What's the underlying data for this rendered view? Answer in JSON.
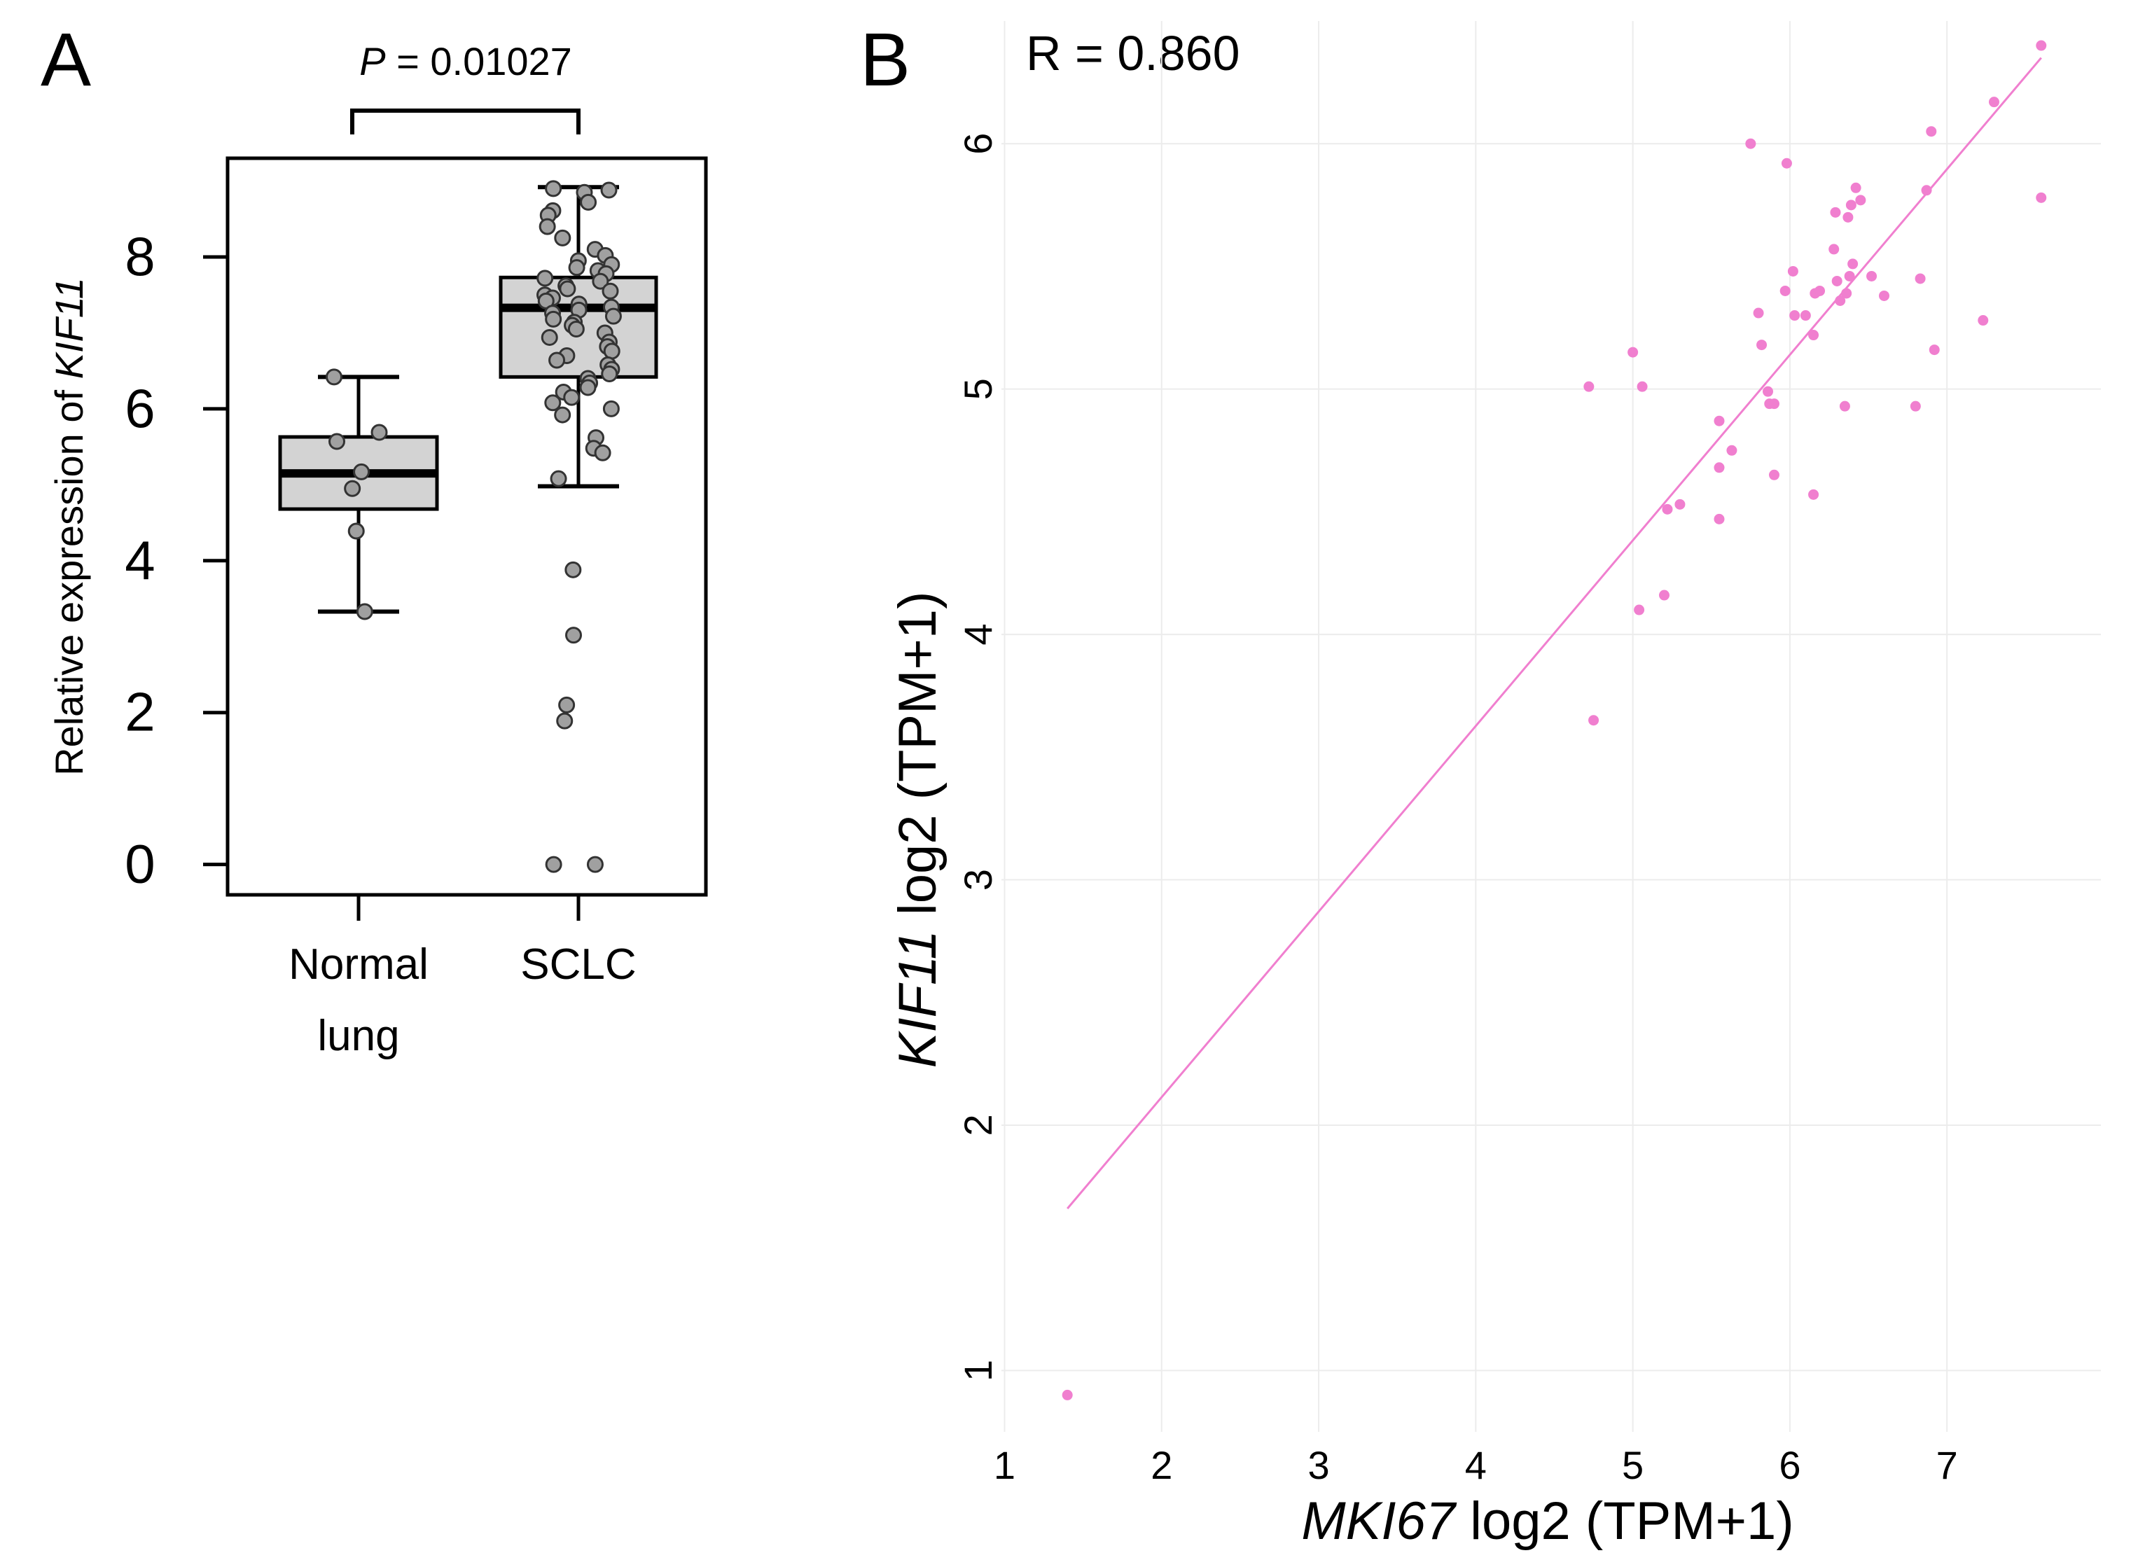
{
  "panels": {
    "a": {
      "letter": "A"
    },
    "b": {
      "letter": "B"
    }
  },
  "colors": {
    "box_fill": "#d3d3d3",
    "point_fill": "#a0a0a0",
    "scatter_point": "#f07fcf",
    "fit_line": "#f07fcf",
    "grid": "#ececec"
  },
  "chart_data": [
    {
      "type": "box",
      "panel": "A",
      "title": "",
      "p_label_italic": "P",
      "p_label_rest": " = 0.01027",
      "ylabel_prefix": "Relative expression of ",
      "ylabel_gene": "KIF11",
      "xlabel": "",
      "ylim": [
        -0.4,
        9.3
      ],
      "yticks": [
        0,
        2,
        4,
        6,
        8
      ],
      "grid": false,
      "categories": [
        "Normal lung",
        "SCLC"
      ],
      "category_lines": [
        [
          "Normal",
          "lung"
        ],
        [
          "SCLC"
        ]
      ],
      "boxes": [
        {
          "name": "Normal lung",
          "whisker_low": 3.33,
          "q1": 4.68,
          "median": 5.15,
          "q3": 5.63,
          "whisker_high": 6.42,
          "points": [
            6.42,
            5.69,
            5.57,
            5.17,
            4.95,
            4.39,
            3.33
          ]
        },
        {
          "name": "SCLC",
          "whisker_low": 4.98,
          "q1": 6.42,
          "median": 7.33,
          "q3": 7.73,
          "whisker_high": 8.92,
          "points": [
            8.9,
            8.88,
            8.85,
            8.72,
            8.61,
            8.55,
            8.4,
            8.25,
            8.1,
            8.02,
            7.95,
            7.9,
            7.86,
            7.82,
            7.78,
            7.72,
            7.68,
            7.62,
            7.58,
            7.55,
            7.5,
            7.46,
            7.42,
            7.38,
            7.34,
            7.3,
            7.26,
            7.22,
            7.18,
            7.14,
            7.1,
            7.05,
            7.0,
            6.94,
            6.88,
            6.82,
            6.76,
            6.7,
            6.64,
            6.58,
            6.52,
            6.46,
            6.4,
            6.34,
            6.28,
            6.22,
            6.15,
            6.08,
            6.0,
            5.92,
            5.62,
            5.48,
            5.42,
            5.08,
            3.88,
            3.02,
            2.1,
            1.89,
            0.0,
            0.0
          ]
        }
      ]
    },
    {
      "type": "scatter",
      "panel": "B",
      "annotation": "R = 0.860",
      "xlabel_gene": "MKI67",
      "xlabel_rest": " log2 (TPM+1)",
      "ylabel_gene": "KIF11",
      "ylabel_rest": " log2 (TPM+1)",
      "xlim": [
        0.98,
        7.98
      ],
      "ylim": [
        0.75,
        6.5
      ],
      "xticks": [
        1,
        2,
        3,
        4,
        5,
        6,
        7
      ],
      "yticks": [
        1,
        2,
        3,
        4,
        5,
        6
      ],
      "grid": true,
      "fit_line": {
        "x": [
          1.4,
          7.6
        ],
        "y": [
          1.66,
          6.35
        ]
      },
      "points": [
        [
          1.4,
          0.9
        ],
        [
          4.72,
          5.01
        ],
        [
          4.75,
          3.65
        ],
        [
          5.0,
          5.15
        ],
        [
          5.04,
          4.1
        ],
        [
          5.06,
          5.01
        ],
        [
          5.2,
          4.16
        ],
        [
          5.22,
          4.51
        ],
        [
          5.3,
          4.53
        ],
        [
          5.55,
          4.47
        ],
        [
          5.55,
          4.68
        ],
        [
          5.55,
          4.87
        ],
        [
          5.63,
          4.75
        ],
        [
          5.75,
          6.0
        ],
        [
          5.8,
          5.31
        ],
        [
          5.82,
          5.18
        ],
        [
          5.86,
          4.99
        ],
        [
          5.87,
          4.94
        ],
        [
          5.9,
          4.65
        ],
        [
          5.9,
          4.94
        ],
        [
          5.97,
          5.4
        ],
        [
          5.98,
          5.92
        ],
        [
          6.02,
          5.48
        ],
        [
          6.03,
          5.3
        ],
        [
          6.1,
          5.3
        ],
        [
          6.15,
          4.57
        ],
        [
          6.15,
          5.22
        ],
        [
          6.16,
          5.39
        ],
        [
          6.19,
          5.4
        ],
        [
          6.28,
          5.57
        ],
        [
          6.29,
          5.72
        ],
        [
          6.3,
          5.44
        ],
        [
          6.32,
          5.36
        ],
        [
          6.35,
          4.93
        ],
        [
          6.36,
          5.39
        ],
        [
          6.37,
          5.7
        ],
        [
          6.38,
          5.46
        ],
        [
          6.39,
          5.75
        ],
        [
          6.4,
          5.51
        ],
        [
          6.42,
          5.82
        ],
        [
          6.45,
          5.77
        ],
        [
          6.52,
          5.46
        ],
        [
          6.6,
          5.38
        ],
        [
          6.8,
          4.93
        ],
        [
          6.83,
          5.45
        ],
        [
          6.87,
          5.81
        ],
        [
          6.9,
          6.05
        ],
        [
          6.92,
          5.16
        ],
        [
          7.23,
          5.28
        ],
        [
          7.3,
          6.17
        ],
        [
          7.6,
          6.4
        ],
        [
          7.6,
          5.78
        ]
      ]
    }
  ]
}
